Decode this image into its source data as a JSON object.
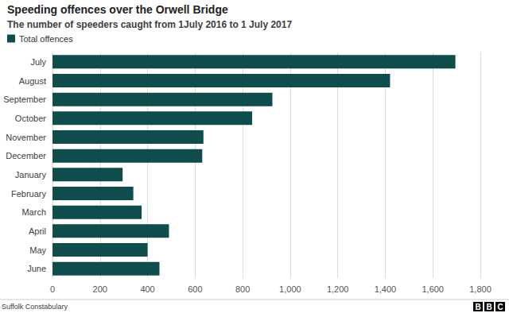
{
  "chart_data": {
    "type": "bar",
    "title": "Speeding offences over the Orwell Bridge",
    "subtitle": "The number of speeders caught from 1July 2016 to 1 July 2017",
    "orientation": "horizontal",
    "categories": [
      "July",
      "August",
      "September",
      "October",
      "November",
      "December",
      "January",
      "February",
      "March",
      "April",
      "May",
      "June"
    ],
    "series": [
      {
        "name": "Total offences",
        "color": "#0e4d4b",
        "values": [
          1695,
          1420,
          925,
          840,
          635,
          630,
          295,
          340,
          375,
          490,
          400,
          450
        ]
      }
    ],
    "xlim": [
      0,
      1800
    ],
    "xticks": [
      0,
      200,
      400,
      600,
      800,
      {
        "value": 1000,
        "label": "1,000"
      },
      {
        "value": 1200,
        "label": "1,200"
      },
      {
        "value": 1400,
        "label": "1,400"
      },
      {
        "value": 1600,
        "label": "1,600"
      },
      {
        "value": 1800,
        "label": "1,800"
      }
    ],
    "grid": true,
    "legend": "top-left",
    "source": "Suffolk Constabulary",
    "credit": "BBC"
  }
}
